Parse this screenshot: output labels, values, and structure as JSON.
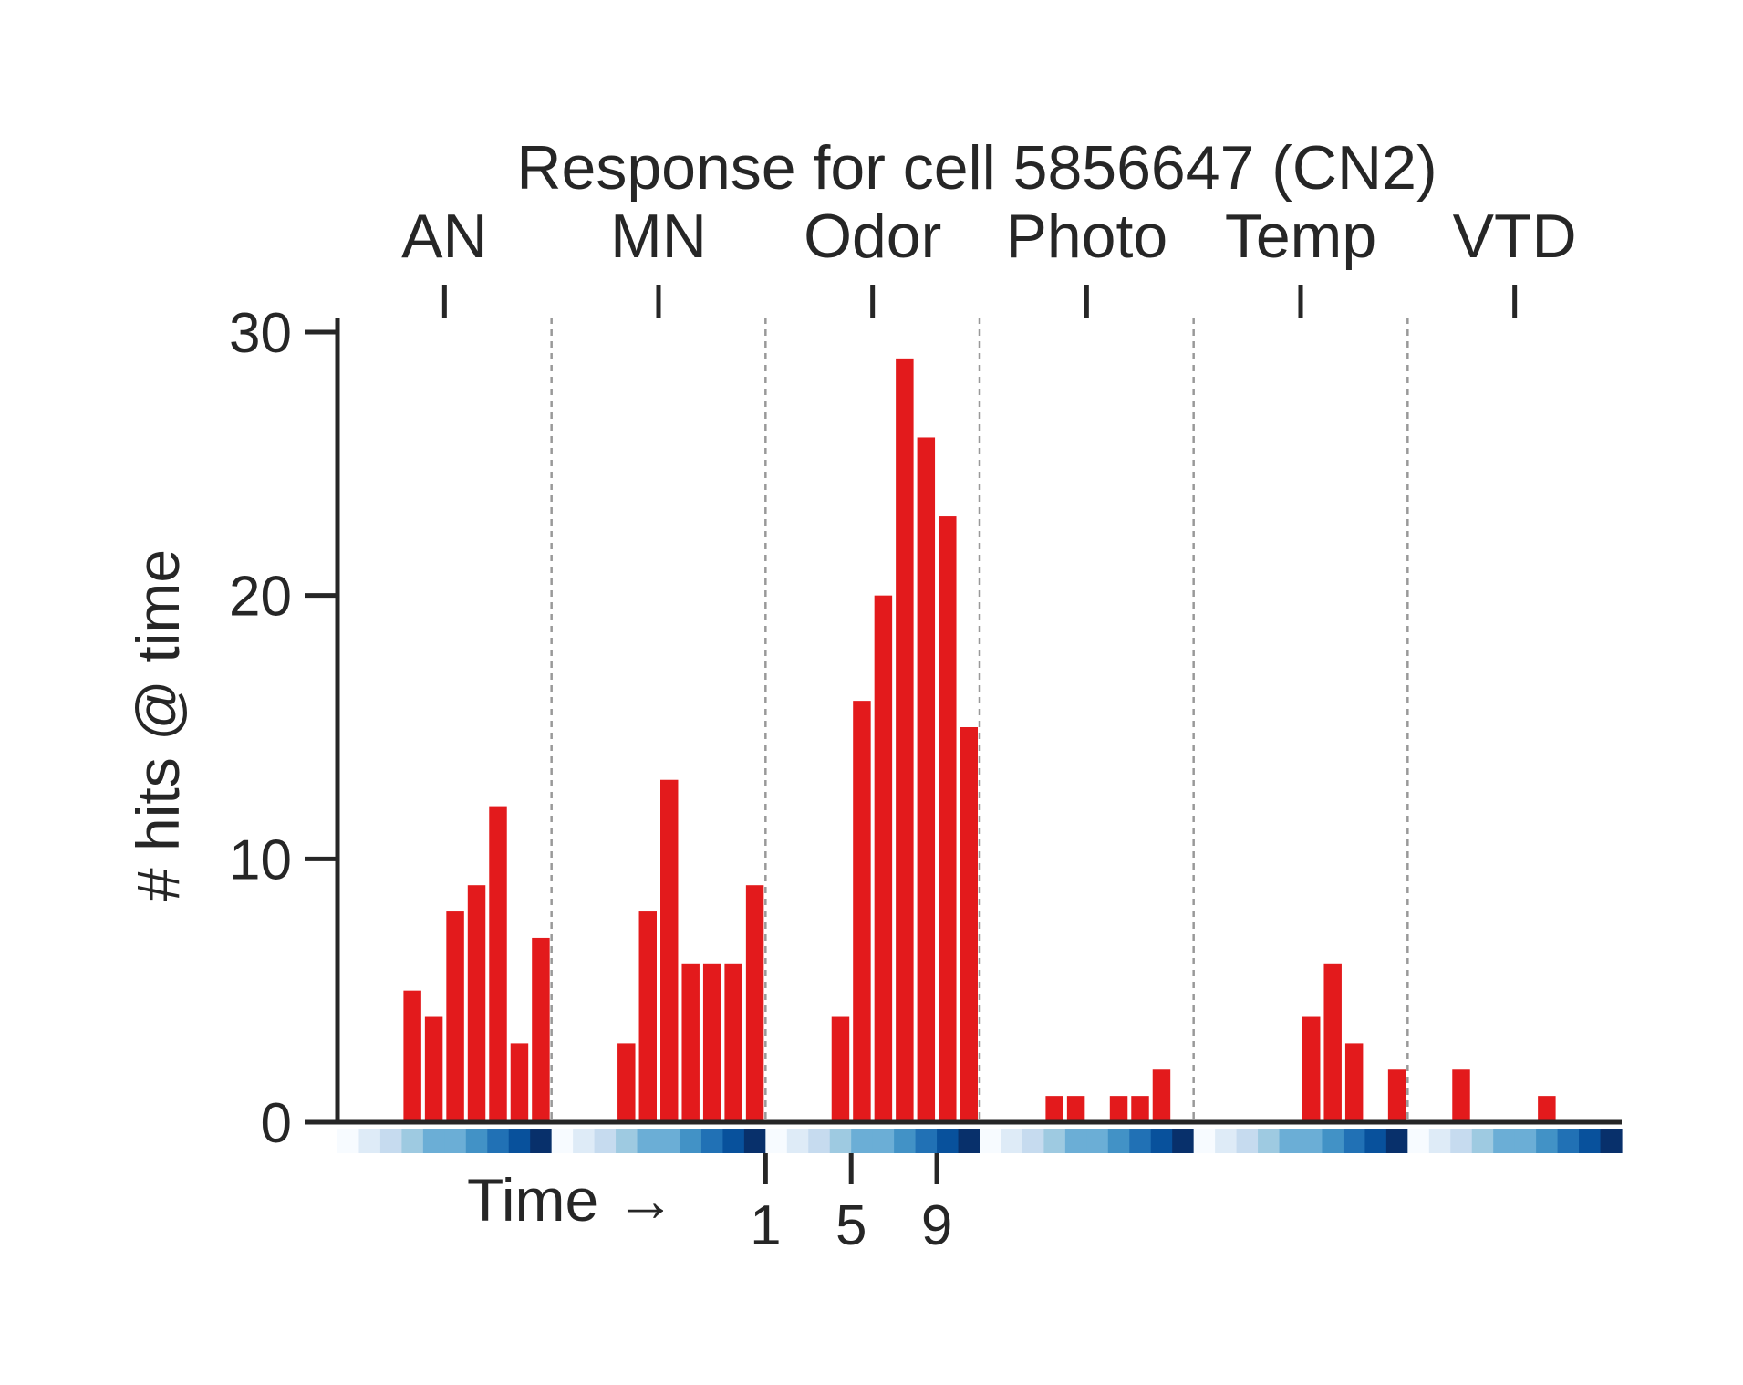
{
  "chart_data": {
    "type": "bar",
    "title": "Response for cell 5856647 (CN2)",
    "ylabel": "# hits @ time",
    "xlabel": "Time →",
    "ylim": [
      0,
      30
    ],
    "yticks": [
      0,
      10,
      20,
      30
    ],
    "time_ticks": [
      "1",
      "5",
      "9"
    ],
    "time_tick_positions": [
      1,
      5,
      9
    ],
    "bins_per_group": 10,
    "groups": [
      {
        "name": "AN",
        "values": [
          0,
          0,
          0,
          5,
          4,
          8,
          9,
          12,
          3,
          7
        ]
      },
      {
        "name": "MN",
        "values": [
          0,
          0,
          0,
          3,
          8,
          13,
          6,
          6,
          6,
          9
        ]
      },
      {
        "name": "Odor",
        "values": [
          0,
          0,
          0,
          4,
          16,
          20,
          29,
          26,
          23,
          15
        ]
      },
      {
        "name": "Photo",
        "values": [
          0,
          0,
          0,
          1,
          1,
          0,
          1,
          1,
          2,
          0
        ]
      },
      {
        "name": "Temp",
        "values": [
          0,
          0,
          0,
          0,
          0,
          4,
          6,
          3,
          0,
          2
        ]
      },
      {
        "name": "VTD",
        "values": [
          0,
          0,
          2,
          0,
          0,
          0,
          1,
          0,
          0,
          0
        ]
      }
    ],
    "bar_color": "#e31a1c",
    "separator_color": "#999999",
    "time_strip_colors": [
      "#f7fbff",
      "#deebf7",
      "#c6dbef",
      "#9ecae1",
      "#6baed6",
      "#4292c6",
      "#2171b5",
      "#08519c",
      "#08306b"
    ],
    "grid": false
  }
}
